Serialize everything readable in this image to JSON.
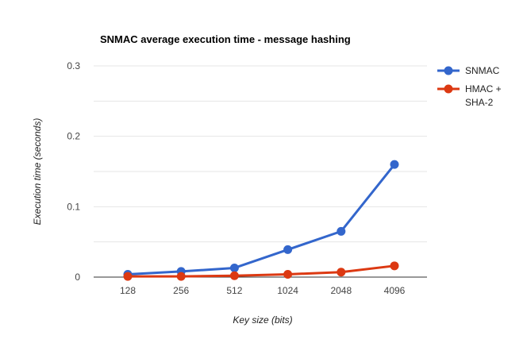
{
  "chart_data": {
    "type": "line",
    "title": "SNMAC average execution time - message hashing",
    "xlabel": "Key size (bits)",
    "ylabel": "Execution time (seconds)",
    "categories": [
      "128",
      "256",
      "512",
      "1024",
      "2048",
      "4096"
    ],
    "ylim": [
      0,
      0.3
    ],
    "yticks": [
      0,
      0.1,
      0.2,
      0.3
    ],
    "ytick_labels": [
      "0",
      "0.1",
      "0.2",
      "0.3"
    ],
    "grid": true,
    "legend_position": "right",
    "series": [
      {
        "name": "SNMAC",
        "color": "#3366cc",
        "values": [
          0.004,
          0.008,
          0.013,
          0.039,
          0.065,
          0.16
        ]
      },
      {
        "name": "HMAC + SHA-2",
        "color": "#dc3912",
        "legend_lines": [
          "HMAC +",
          "SHA-2"
        ],
        "values": [
          0.001,
          0.001,
          0.002,
          0.004,
          0.007,
          0.016
        ]
      }
    ]
  }
}
